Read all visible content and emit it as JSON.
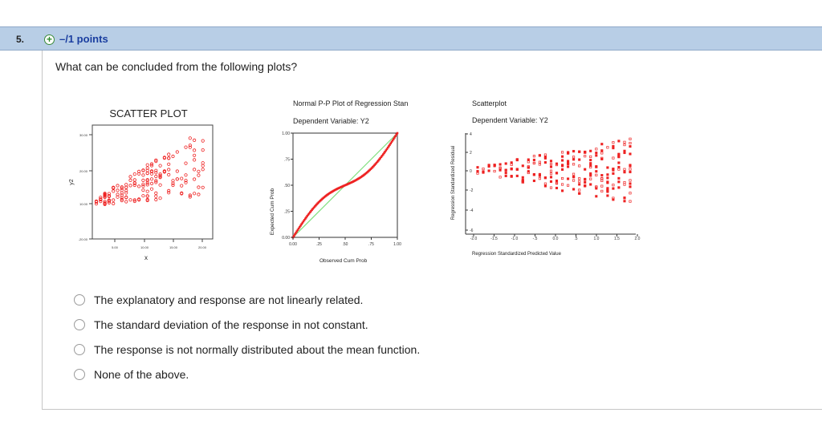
{
  "question": {
    "number": "5.",
    "points": "–/1 points",
    "text": "What can be concluded from the following plots?"
  },
  "figure": {
    "scatter": {
      "title": "SCATTER PLOT",
      "xlabel": "x",
      "ylabel": "y2",
      "yticks": [
        "30.00",
        "20.00",
        "10.00",
        "-20.00"
      ],
      "xticks": [
        "5.00",
        "10.00",
        "15.00",
        "20.00"
      ]
    },
    "pp": {
      "title": "Normal P-P Plot of Regression Stan",
      "subtitle": "Dependent Variable: Y2",
      "xlabel": "Observed Cum Prob",
      "ylabel": "Expected Cum Prob",
      "xticks": [
        "0.00",
        ".25",
        ".50",
        ".75",
        "1.00"
      ],
      "yticks": [
        "1.00",
        ".75",
        ".50",
        ".25",
        "0.00"
      ]
    },
    "resid": {
      "title": "Scatterplot",
      "subtitle": "Dependent Variable: Y2",
      "xlabel": "Regression Standardized Predicted Value",
      "ylabel": "Regression Standardized Residual",
      "xticks": [
        "-2.0",
        "-1.5",
        "-1.0",
        "-.5",
        "0.0",
        ".5",
        "1.0",
        "1.5",
        "2.0"
      ],
      "yticks": [
        "4",
        "2",
        "0",
        "-2",
        "-4",
        "-6"
      ]
    },
    "colors": {
      "points": "#ee2222",
      "reference_line": "#7ee07e"
    }
  },
  "options": [
    {
      "label": "The explanatory and response are not linearly related."
    },
    {
      "label": "The standard deviation of the response in not constant."
    },
    {
      "label": "The response is not normally distributed about the mean function."
    },
    {
      "label": "None of the above."
    }
  ]
}
